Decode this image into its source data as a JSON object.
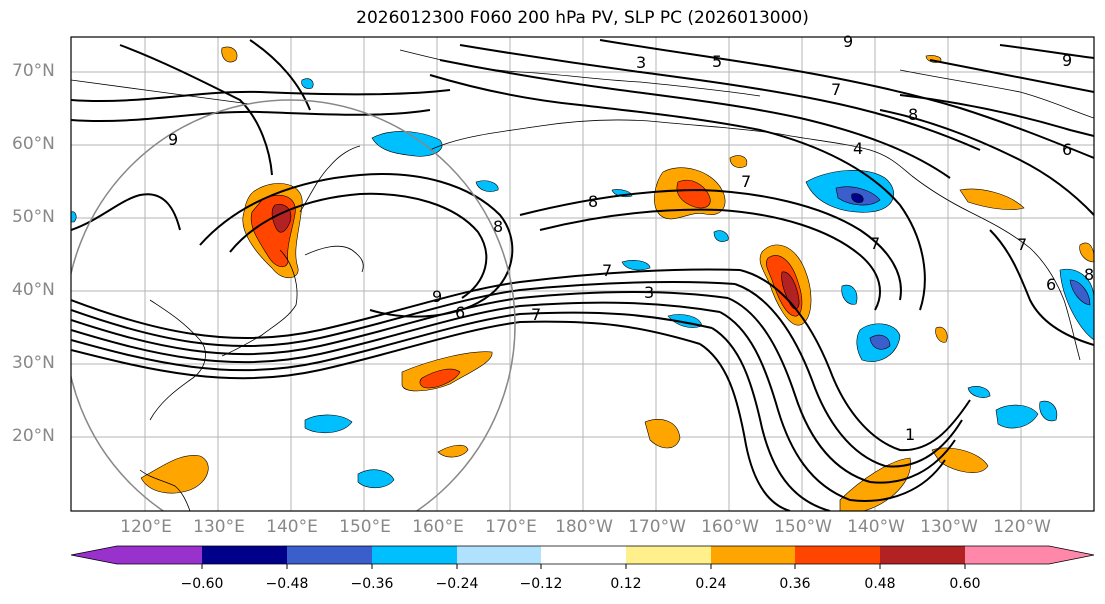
{
  "title": "2026012300 F060 200 hPa PV, SLP PC (2026013000)",
  "latitude_labels": [
    "70°N",
    "60°N",
    "50°N",
    "40°N",
    "30°N",
    "20°N"
  ],
  "longitude_labels": [
    "120°E",
    "130°E",
    "140°E",
    "150°E",
    "160°E",
    "170°E",
    "180°W",
    "170°W",
    "160°W",
    "150°W",
    "140°W",
    "130°W",
    "120°W"
  ],
  "colorbar": {
    "ticks": [
      "−0.60",
      "−0.48",
      "−0.36",
      "−0.24",
      "−0.12",
      "0.12",
      "0.24",
      "0.36",
      "0.48",
      "0.60"
    ],
    "colors": [
      "#9932cc",
      "#00008b",
      "#3a5fcd",
      "#00bfff",
      "#b0e2ff",
      "#ffffff",
      "#fff08c",
      "#ffa500",
      "#ff4500",
      "#b22222",
      "#ff88aa"
    ]
  },
  "contour_labels": [
    "3",
    "5",
    "7",
    "8",
    "9",
    "9",
    "6",
    "9",
    "8",
    "8",
    "7",
    "7",
    "3",
    "7",
    "6",
    "9",
    "4",
    "7",
    "7",
    "1",
    "6",
    "8"
  ]
}
